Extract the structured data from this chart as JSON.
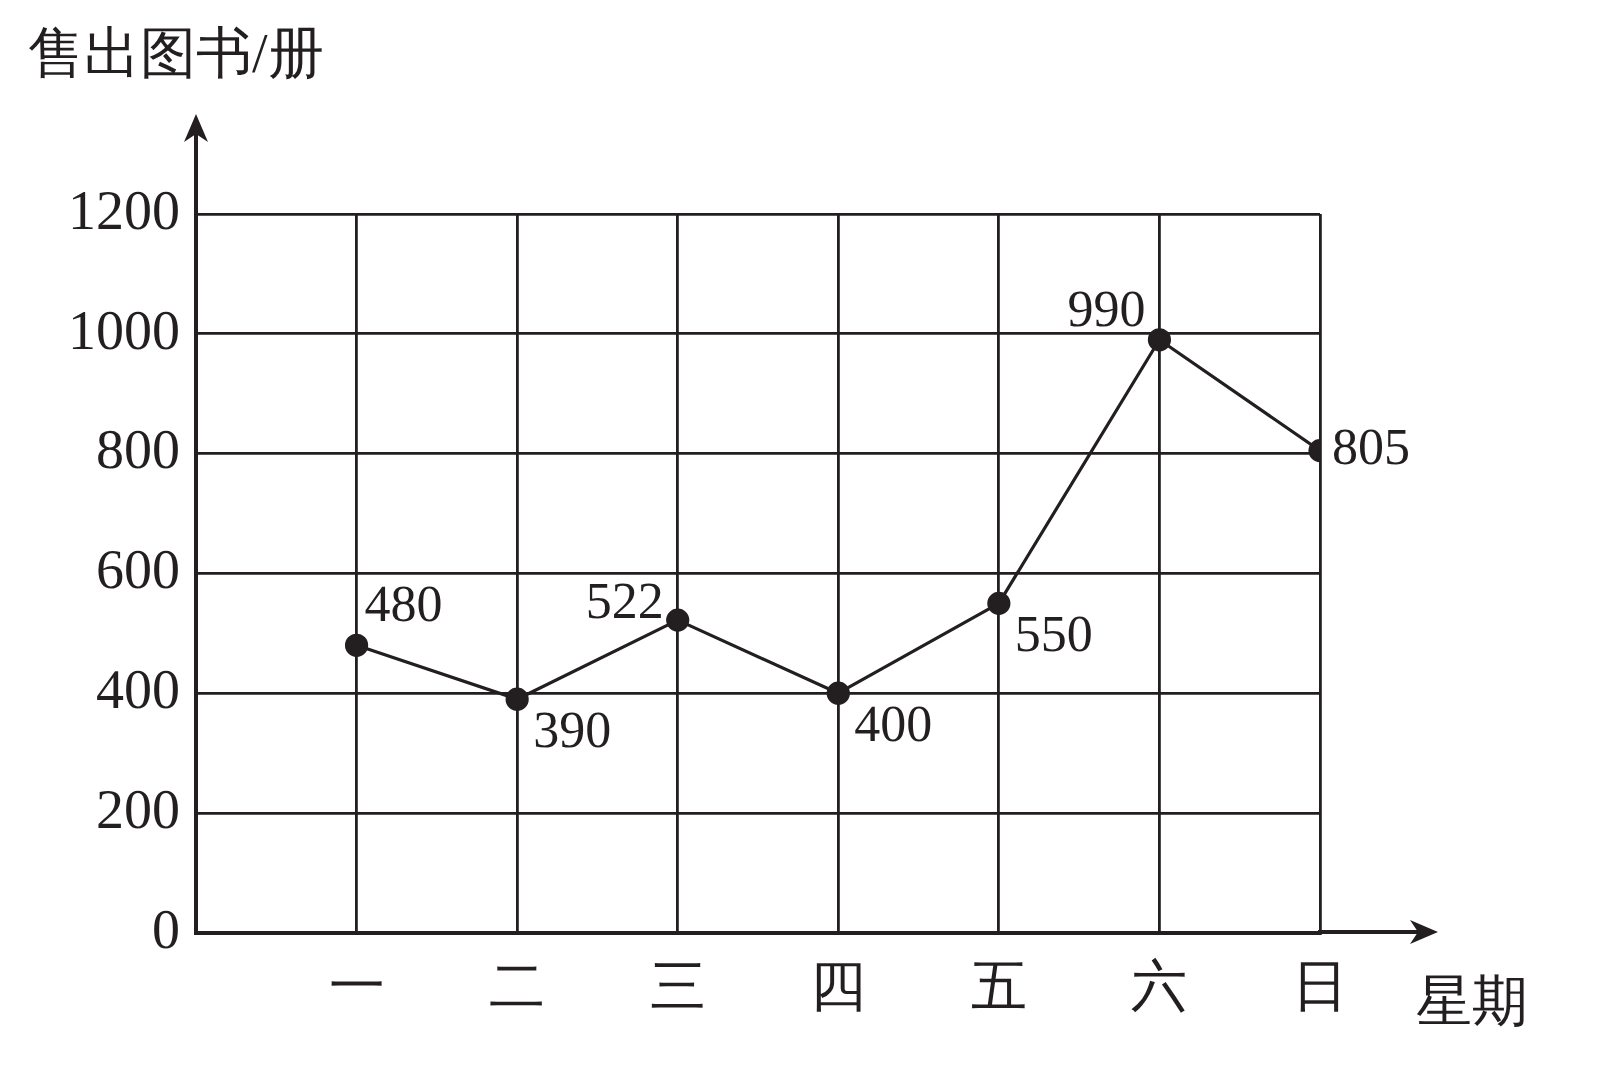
{
  "chart_data": {
    "type": "line",
    "xlabel": "星期",
    "ylabel": "售出图书/册",
    "categories": [
      "一",
      "二",
      "三",
      "四",
      "五",
      "六",
      "日"
    ],
    "values": [
      480,
      390,
      522,
      400,
      550,
      990,
      805
    ],
    "color": "#231f20",
    "ylim": [
      0,
      1200
    ],
    "yticks": [
      0,
      200,
      400,
      600,
      800,
      1000,
      1200
    ],
    "grid": true,
    "marker": "circle",
    "line_style": "solid",
    "data_labels": true,
    "legend": false
  }
}
